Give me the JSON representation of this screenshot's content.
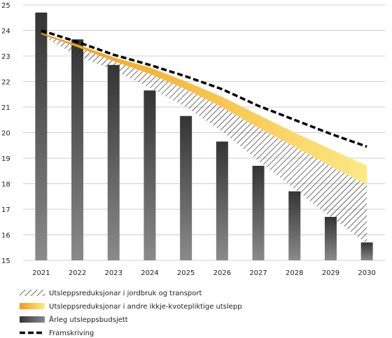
{
  "chart_data": {
    "type": "bar",
    "title": "",
    "xlabel": "",
    "ylabel": "",
    "categories": [
      "2021",
      "2022",
      "2023",
      "2024",
      "2025",
      "2026",
      "2027",
      "2028",
      "2029",
      "2030"
    ],
    "ylim": [
      15,
      25
    ],
    "yticks": [
      "15",
      "16",
      "17",
      "18",
      "19",
      "20",
      "21",
      "22",
      "23",
      "24",
      "25"
    ],
    "grid": "horizontal",
    "legend_position": "bottom-left",
    "series": [
      {
        "name": "Årleg utsleppsbudsjett",
        "type": "bar",
        "values": [
          24.7,
          23.65,
          22.65,
          21.65,
          20.65,
          19.65,
          18.7,
          17.7,
          16.7,
          15.7
        ]
      },
      {
        "name": "Framskriving",
        "type": "line",
        "values": [
          24.0,
          23.55,
          23.05,
          22.65,
          22.2,
          21.7,
          21.05,
          20.5,
          19.95,
          19.45
        ]
      },
      {
        "name": "Utsleppsreduksjonar i andre ikkje-kvotepliktige utslepp",
        "type": "area-band",
        "upper": [
          23.9,
          23.45,
          22.95,
          22.55,
          22.0,
          21.4,
          20.7,
          20.0,
          19.35,
          18.7
        ],
        "lower": [
          23.85,
          23.35,
          22.8,
          22.3,
          21.7,
          21.0,
          20.2,
          19.45,
          18.7,
          17.95
        ]
      },
      {
        "name": "Utsleppsreduksjonar i jordbruk og transport",
        "type": "area-band",
        "upper": [
          23.85,
          23.35,
          22.8,
          22.3,
          21.7,
          21.0,
          20.2,
          19.45,
          18.7,
          17.95
        ],
        "lower": [
          23.8,
          23.0,
          22.45,
          21.75,
          21.0,
          20.05,
          18.9,
          17.8,
          16.7,
          15.65
        ]
      }
    ],
    "legend": [
      {
        "label": "Utsleppsreduksjonar i jordbruk og transport",
        "symbol": "hatch"
      },
      {
        "label": "Utsleppsreduksjonar i andre ikkje-kvotepliktige utslepp",
        "symbol": "orange-gradient"
      },
      {
        "label": "Årleg utsleppsbudsjett",
        "symbol": "gray-bar"
      },
      {
        "label": "Framskriving",
        "symbol": "dashed-line"
      }
    ],
    "colors": {
      "bar_dark": "#3a3a3a",
      "bar_light": "#7a7a7a",
      "orange": "#f39a12",
      "yellow": "#fde983",
      "hatch": "#222222",
      "dashed": "#000000",
      "grid": "#cfcfcf"
    }
  }
}
